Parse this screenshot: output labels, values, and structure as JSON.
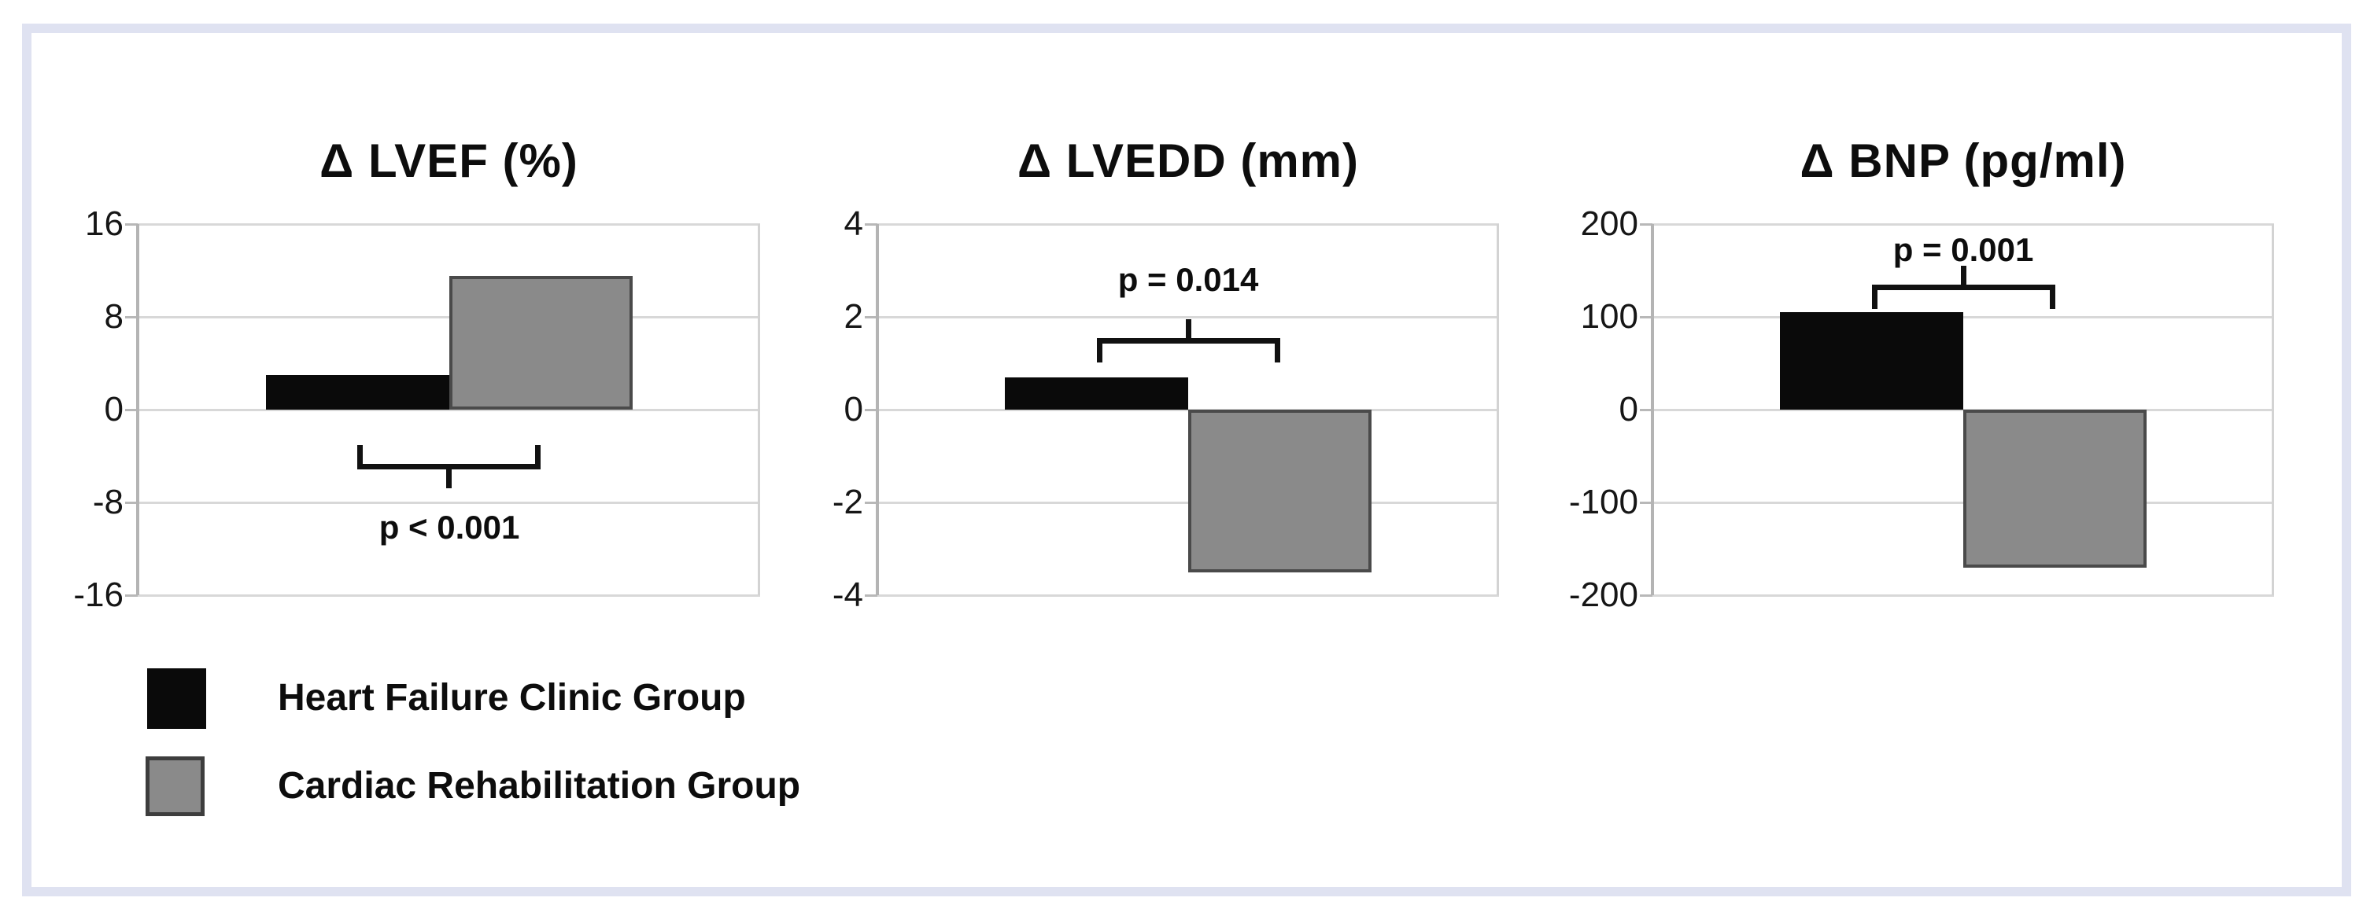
{
  "figure": {
    "panel_border_color": "#dfe2f1",
    "background_color": "#ffffff"
  },
  "colors": {
    "black_bar": "#0a0a0a",
    "gray_bar": "#8a8a8a",
    "gray_bar_border": "#4a4a4a",
    "gridline": "#d8d8d8",
    "axis_line": "#b4b4b4",
    "bracket": "#111111",
    "text": "#0d0d0d"
  },
  "legend": {
    "items": [
      {
        "label": "Heart Failure Clinic Group",
        "swatch": "black",
        "color": "#0a0a0a"
      },
      {
        "label": "Cardiac Rehabilitation Group",
        "swatch": "gray",
        "color": "#8a8a8a"
      }
    ]
  },
  "chart_data": [
    {
      "type": "bar",
      "title": "Δ LVEF (%)",
      "categories": [
        "Heart Failure Clinic Group",
        "Cardiac Rehabilitation Group"
      ],
      "values": [
        3,
        11.5
      ],
      "ylim": [
        -16,
        16
      ],
      "yticks": [
        16,
        8,
        0,
        -8,
        -16
      ],
      "grid": true,
      "legend_position": "bottom-left",
      "annotation": {
        "p_label": "p < 0.001",
        "position": "below",
        "bracket_y": -4.7,
        "label_y": -10.2
      }
    },
    {
      "type": "bar",
      "title": "Δ LVEDD (mm)",
      "categories": [
        "Heart Failure Clinic Group",
        "Cardiac Rehabilitation Group"
      ],
      "values": [
        0.7,
        -3.5
      ],
      "ylim": [
        -4,
        4
      ],
      "yticks": [
        4,
        2,
        0,
        -2,
        -4
      ],
      "grid": true,
      "legend_position": "bottom-left",
      "annotation": {
        "p_label": "p = 0.014",
        "position": "above",
        "bracket_y": 1.55,
        "label_y": 2.8
      }
    },
    {
      "type": "bar",
      "title": "Δ BNP (pg/ml)",
      "categories": [
        "Heart Failure Clinic Group",
        "Cardiac Rehabilitation Group"
      ],
      "values": [
        105,
        -170
      ],
      "ylim": [
        -200,
        200
      ],
      "yticks": [
        200,
        100,
        0,
        -100,
        -200
      ],
      "grid": true,
      "legend_position": "bottom-left",
      "annotation": {
        "p_label": "p = 0.001",
        "position": "above",
        "bracket_y": 135,
        "label_y": 172
      }
    }
  ]
}
